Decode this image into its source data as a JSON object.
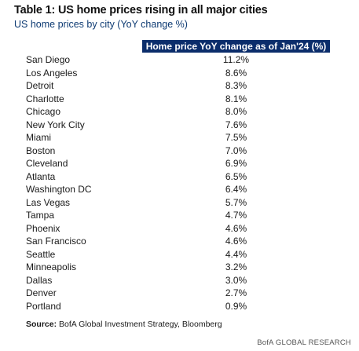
{
  "title": "Table 1: US home prices rising in all major cities",
  "subtitle": "US home prices by city (YoY change %)",
  "source_label": "Source:",
  "source_text": "BofA Global Investment Strategy, Bloomberg",
  "brand": "BofA GLOBAL RESEARCH",
  "colors": {
    "header_bg": "#0b2d6b",
    "header_text": "#ffffff",
    "subtitle": "#0e3b73"
  },
  "chart_data": {
    "type": "table",
    "title": "Table 1: US home prices rising in all major cities",
    "subtitle": "US home prices by city (YoY change %)",
    "column_header": "Home price YoY change as of Jan'24 (%)",
    "rows": [
      {
        "city": "San Diego",
        "value": "11.2%"
      },
      {
        "city": "Los Angeles",
        "value": "8.6%"
      },
      {
        "city": "Detroit",
        "value": "8.3%"
      },
      {
        "city": "Charlotte",
        "value": "8.1%"
      },
      {
        "city": "Chicago",
        "value": "8.0%"
      },
      {
        "city": "New York City",
        "value": "7.6%"
      },
      {
        "city": "Miami",
        "value": "7.5%"
      },
      {
        "city": "Boston",
        "value": "7.0%"
      },
      {
        "city": "Cleveland",
        "value": "6.9%"
      },
      {
        "city": "Atlanta",
        "value": "6.5%"
      },
      {
        "city": "Washington DC",
        "value": "6.4%"
      },
      {
        "city": "Las Vegas",
        "value": "5.7%"
      },
      {
        "city": "Tampa",
        "value": "4.7%"
      },
      {
        "city": "Phoenix",
        "value": "4.6%"
      },
      {
        "city": "San Francisco",
        "value": "4.6%"
      },
      {
        "city": "Seattle",
        "value": "4.4%"
      },
      {
        "city": "Minneapolis",
        "value": "3.2%"
      },
      {
        "city": "Dallas",
        "value": "3.0%"
      },
      {
        "city": "Denver",
        "value": "2.7%"
      },
      {
        "city": "Portland",
        "value": "0.9%"
      }
    ]
  }
}
